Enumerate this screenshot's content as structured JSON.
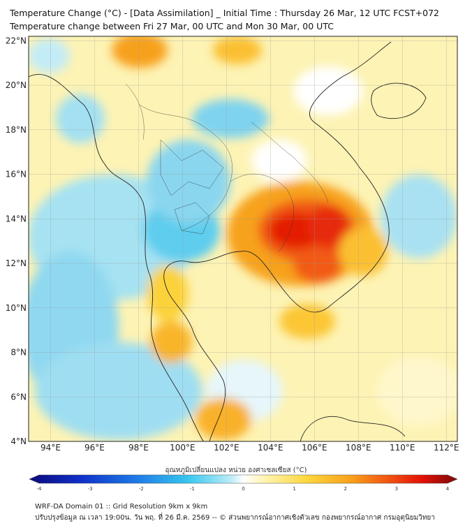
{
  "header": {
    "title_line1": "Temperature Change (°C) - [Data Assimilation] _ Initial Time : Thursday 26 Mar, 12 UTC FCST+072",
    "title_line2": "Temperature change between Fri 27 Mar, 00 UTC and Mon 30 Mar, 00 UTC"
  },
  "map": {
    "lon_ticks": [
      "94°E",
      "96°E",
      "98°E",
      "100°E",
      "102°E",
      "104°E",
      "106°E",
      "108°E",
      "110°E",
      "112°E"
    ],
    "lat_ticks": [
      "22°N",
      "20°N",
      "18°N",
      "16°N",
      "14°N",
      "12°N",
      "10°N",
      "8°N",
      "6°N",
      "4°N"
    ],
    "lon_range": [
      93,
      112.5
    ],
    "lat_range": [
      4,
      22.2
    ]
  },
  "colorbar": {
    "title": "อุณหภูมิเปลี่ยนแปลง หน่วย องศาเซลเซียส (°C)",
    "ticks": [
      "-4",
      "-3",
      "-2",
      "-1",
      "0",
      "1",
      "2",
      "3",
      "4"
    ],
    "range": [
      -4,
      4
    ],
    "colors": [
      "#0a0a7a",
      "#1030c8",
      "#1e7ae6",
      "#38c6ef",
      "#b8ecf7",
      "#ffffff",
      "#fff4b0",
      "#fcd63c",
      "#f8a21c",
      "#f04a10",
      "#e01005",
      "#7a0a0a"
    ]
  },
  "footer": {
    "line1": "WRF-DA Domain 01 :: Grid Resolution 9km x 9km",
    "line2": "ปรับปรุงข้อมูล ณ เวลา 19:00น. วัน พฤ. ที่ 26 มี.ค. 2569 -- © ส่วนพยากรณ์อากาศเชิงตัวเลข กองพยากรณ์อากาศ กรมอุตุนิยมวิทยา"
  }
}
